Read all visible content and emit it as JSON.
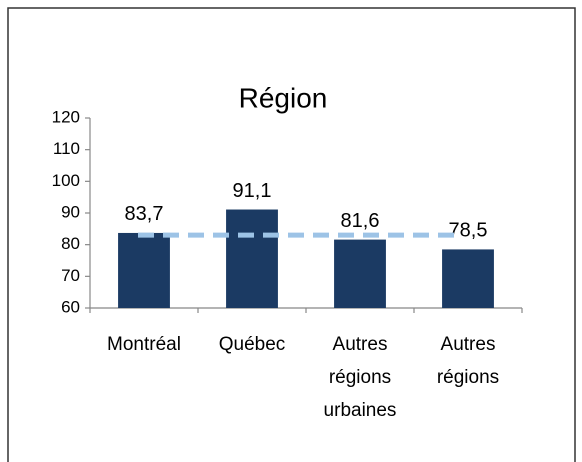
{
  "chart_data": {
    "type": "bar",
    "title": "Région",
    "categories": [
      "Montréal",
      "Québec",
      "Autres régions urbaines",
      "Autres régions"
    ],
    "values": [
      83.7,
      91.1,
      81.6,
      78.5
    ],
    "value_labels": [
      "83,7",
      "91,1",
      "81,6",
      "78,5"
    ],
    "color": "#1b3a63",
    "ylim": [
      60,
      120
    ],
    "yticks": [
      60,
      70,
      80,
      90,
      100,
      110,
      120
    ],
    "reference_line": {
      "value": 83,
      "color": "#9dc3e6"
    }
  }
}
